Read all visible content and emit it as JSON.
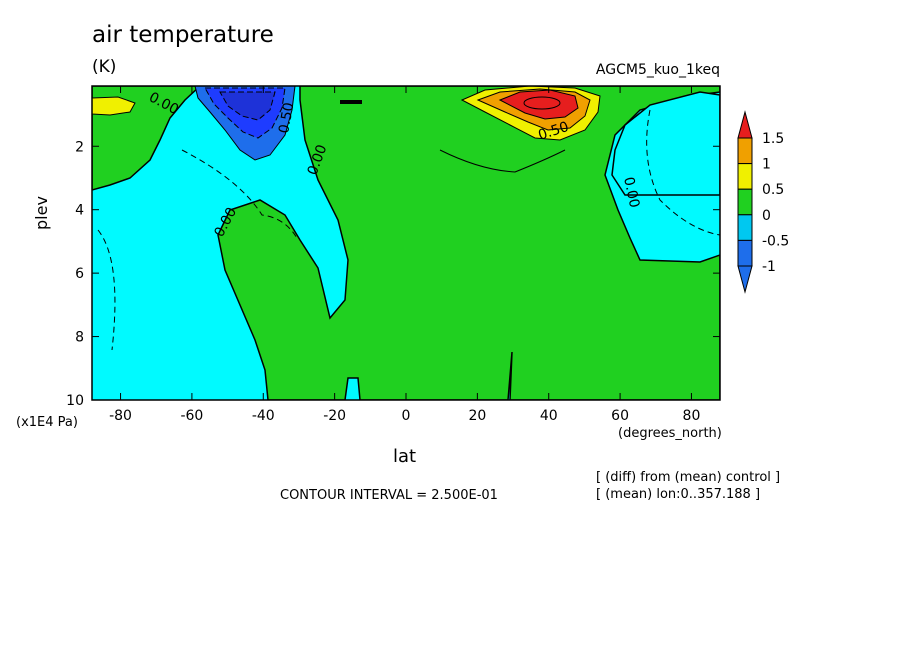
{
  "chart_data": {
    "type": "heatmap",
    "title": "air temperature",
    "units": "(K)",
    "run_label": "AGCM5_kuo_1keq",
    "xlabel": "lat",
    "x_units": "(degrees_north)",
    "ylabel": "plev",
    "y_units": "(x1E4 Pa)",
    "xlim": [
      -88,
      88
    ],
    "ylim": [
      10,
      0.1
    ],
    "x_ticks": [
      -80,
      -60,
      -40,
      -20,
      0,
      20,
      40,
      60,
      80
    ],
    "x_tick_labels": [
      "-80",
      "-60",
      "-40",
      "-20",
      "0",
      "20",
      "40",
      "60",
      "80"
    ],
    "y_ticks": [
      2,
      4,
      6,
      8,
      10
    ],
    "y_tick_labels": [
      "2",
      "4",
      "6",
      "8",
      "10"
    ],
    "contour_interval_text": "CONTOUR INTERVAL = 2.500E-01",
    "contour_labels": [
      "0.00",
      "0.50",
      "0.00",
      "0.00",
      "0.50",
      "0.00"
    ],
    "colorbar": {
      "levels": [
        -1,
        -0.5,
        0,
        0.5,
        1,
        1.5
      ],
      "labels": [
        "-1",
        "-0.5",
        "0",
        "0.5",
        "1",
        "1.5"
      ],
      "colors": [
        "#1e6eeb",
        "#00c8f0",
        "#20d020",
        "#f0f000",
        "#f0a000",
        "#e61e1e"
      ],
      "low_color": "#1e3cff",
      "high_color": "#e61e1e"
    },
    "notes": [
      "[ (diff) from (mean) control ]",
      "[ (mean) lon:0..357.188 ]"
    ],
    "extrema": [
      {
        "lat": 38,
        "plev": 0.8,
        "value": 1.6
      },
      {
        "lat": -44,
        "plev": 0.9,
        "value": -1.5
      },
      {
        "lat": -82,
        "plev": 1.0,
        "value": 0.6
      }
    ]
  },
  "colors": {
    "green": "#20d020",
    "cyan": "#00faff",
    "blue": "#1e6eeb",
    "darkblue": "#1e3cff",
    "yellow": "#f0f000",
    "orange": "#f0a000",
    "red": "#e61e1e"
  }
}
